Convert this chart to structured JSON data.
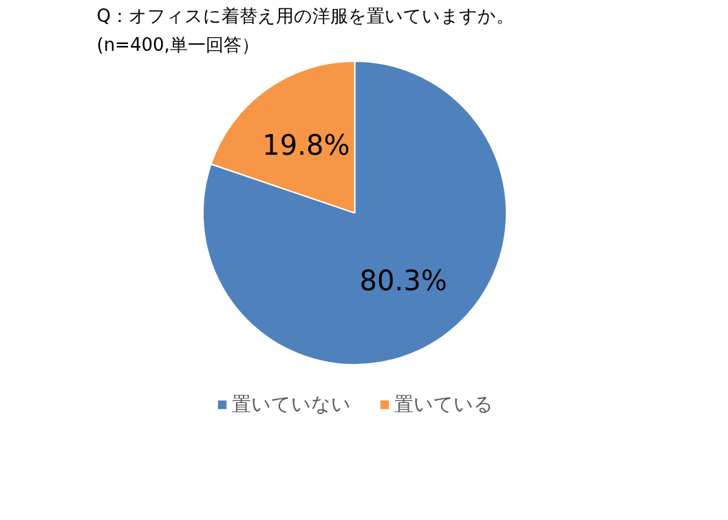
{
  "chart_data": {
    "type": "pie",
    "title": "Q：オフィスに着替え用の洋服を置いていますか。",
    "subtitle": "(n=400,単一回答）",
    "categories": [
      "置いていない",
      "置いている"
    ],
    "values": [
      80.3,
      19.8
    ],
    "colors": [
      "#4f81bd",
      "#f79646"
    ],
    "value_labels": [
      "80.3%",
      "19.8%"
    ],
    "legend": "bottom"
  }
}
